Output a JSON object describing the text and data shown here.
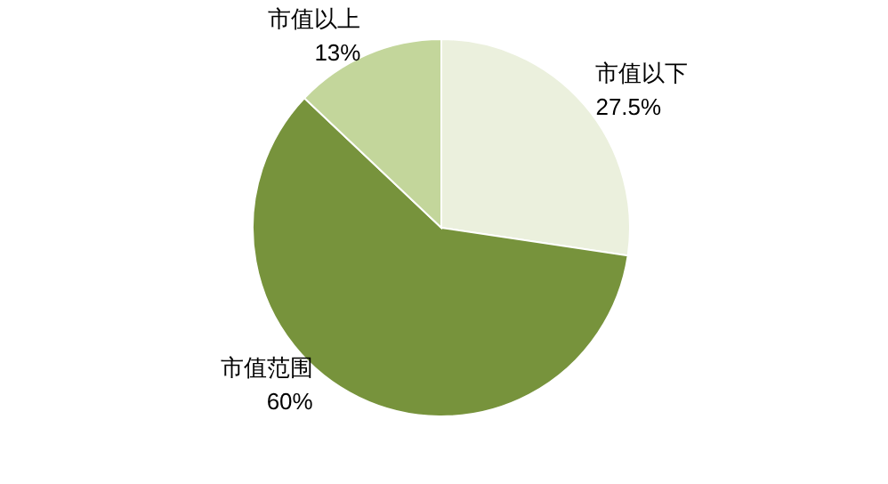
{
  "chart_data": {
    "type": "pie",
    "categories": [
      "市值以下",
      "市值范围",
      "市值以上"
    ],
    "values": [
      27.5,
      60,
      13
    ],
    "value_labels": [
      "27.5%",
      "60%",
      "13%"
    ],
    "colors": [
      "#ebf0dd",
      "#77933c",
      "#c3d69b"
    ]
  }
}
